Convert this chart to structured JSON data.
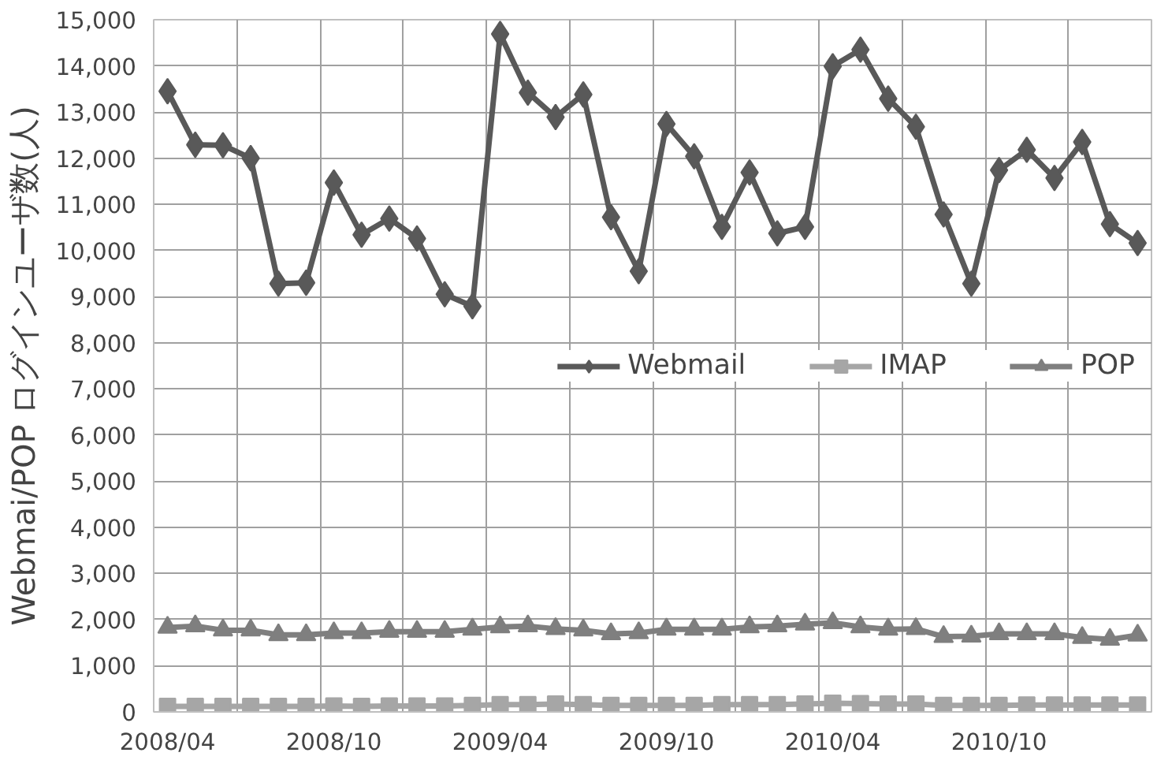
{
  "chart_data": {
    "type": "line",
    "ylabel": "Webmai/POP ログインユーザ数(人)",
    "categories": [
      "2008/04",
      null,
      null,
      null,
      null,
      null,
      "2008/10",
      null,
      null,
      null,
      null,
      null,
      "2009/04",
      null,
      null,
      null,
      null,
      null,
      "2009/10",
      null,
      null,
      null,
      null,
      null,
      "2010/04",
      null,
      null,
      null,
      null,
      null,
      "2010/10",
      null,
      null,
      null,
      null,
      null
    ],
    "ylim": [
      0,
      15000
    ],
    "yticks": [
      {
        "value": 0,
        "label": "0"
      },
      {
        "value": 1000,
        "label": "1,000"
      },
      {
        "value": 2000,
        "label": "2,000"
      },
      {
        "value": 3000,
        "label": "3,000"
      },
      {
        "value": 4000,
        "label": "4,000"
      },
      {
        "value": 5000,
        "label": "5,000"
      },
      {
        "value": 6000,
        "label": "6,000"
      },
      {
        "value": 7000,
        "label": "7,000"
      },
      {
        "value": 8000,
        "label": "8,000"
      },
      {
        "value": 9000,
        "label": "9,000"
      },
      {
        "value": 10000,
        "label": "10,000"
      },
      {
        "value": 11000,
        "label": "11,000"
      },
      {
        "value": 12000,
        "label": "12,000"
      },
      {
        "value": 13000,
        "label": "13,000"
      },
      {
        "value": 14000,
        "label": "14,000"
      },
      {
        "value": 15000,
        "label": "15,000"
      }
    ],
    "grid": true,
    "legend": "right",
    "line_style": "solid",
    "series": [
      {
        "name": "Webmail",
        "color": "#595959",
        "marker": "diamond",
        "values": [
          13450,
          12290,
          12280,
          12000,
          9280,
          9300,
          11470,
          10340,
          10690,
          10260,
          9050,
          8790,
          14690,
          13420,
          12890,
          13380,
          10720,
          9550,
          12740,
          12040,
          10510,
          11690,
          10370,
          10510,
          13990,
          14350,
          13290,
          12680,
          10780,
          9280,
          11740,
          12180,
          11570,
          12350,
          10570,
          10160
        ]
      },
      {
        "name": "IMAP",
        "color": "#a6a6a6",
        "marker": "square",
        "values": [
          120,
          120,
          120,
          120,
          120,
          120,
          130,
          120,
          130,
          130,
          130,
          140,
          160,
          160,
          170,
          160,
          140,
          140,
          140,
          140,
          160,
          160,
          160,
          170,
          190,
          180,
          170,
          170,
          140,
          140,
          140,
          150,
          150,
          150,
          150,
          150
        ]
      },
      {
        "name": "POP",
        "color": "#7f7f7f",
        "marker": "triangle",
        "values": [
          1830,
          1860,
          1770,
          1770,
          1670,
          1670,
          1710,
          1710,
          1740,
          1740,
          1740,
          1790,
          1840,
          1860,
          1800,
          1770,
          1690,
          1710,
          1790,
          1790,
          1790,
          1840,
          1860,
          1900,
          1930,
          1840,
          1790,
          1800,
          1630,
          1640,
          1690,
          1690,
          1690,
          1610,
          1570,
          1660
        ]
      }
    ]
  }
}
